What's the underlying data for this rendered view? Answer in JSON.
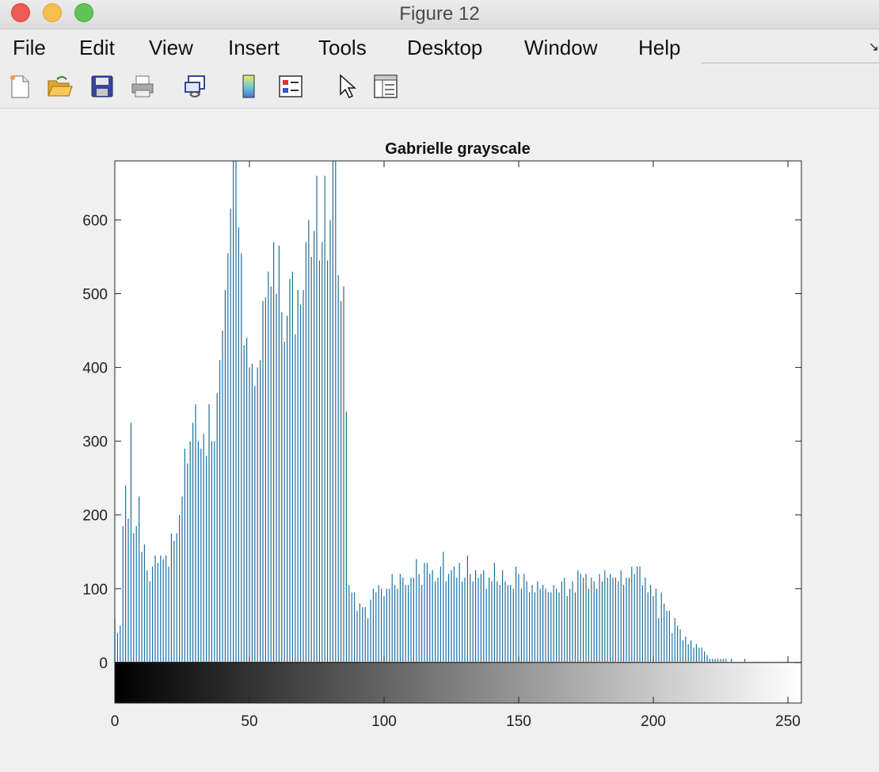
{
  "window": {
    "title": "Figure 12"
  },
  "menu": {
    "file": "File",
    "edit": "Edit",
    "view": "View",
    "insert": "Insert",
    "tools": "Tools",
    "desktop": "Desktop",
    "window": "Window",
    "help": "Help"
  },
  "toolbar": {
    "icons": [
      "new-figure-icon",
      "open-file-icon",
      "save-icon",
      "print-icon",
      "link-plot-icon",
      "insert-colorbar-icon",
      "insert-legend-icon",
      "edit-plot-pointer-icon",
      "property-inspector-icon"
    ]
  },
  "colors": {
    "bar": "#1f6f9e",
    "axes": "#262626",
    "background": "#efefef"
  },
  "chart_data": {
    "type": "bar",
    "title": "Gabrielle grayscale",
    "xlabel": "",
    "ylabel": "",
    "xlim": [
      0,
      255
    ],
    "ylim": [
      -55,
      680
    ],
    "xticks": [
      0,
      50,
      100,
      150,
      200,
      250
    ],
    "yticks": [
      0,
      100,
      200,
      300,
      400,
      500,
      600
    ],
    "colorbar": "grayscale 0-255 below axis",
    "x_start": 0,
    "values": [
      60,
      40,
      50,
      185,
      240,
      195,
      325,
      175,
      185,
      225,
      150,
      160,
      125,
      110,
      130,
      145,
      135,
      145,
      140,
      145,
      130,
      175,
      165,
      175,
      200,
      225,
      290,
      270,
      300,
      325,
      350,
      300,
      290,
      310,
      280,
      350,
      300,
      300,
      365,
      410,
      450,
      505,
      555,
      615,
      680,
      680,
      590,
      555,
      430,
      440,
      400,
      405,
      375,
      400,
      410,
      490,
      495,
      530,
      510,
      570,
      500,
      565,
      475,
      435,
      470,
      520,
      530,
      445,
      505,
      485,
      505,
      570,
      600,
      550,
      585,
      660,
      545,
      570,
      660,
      545,
      600,
      720,
      720,
      525,
      490,
      510,
      340,
      105,
      95,
      95,
      70,
      80,
      75,
      75,
      60,
      85,
      100,
      95,
      105,
      100,
      90,
      100,
      100,
      120,
      105,
      100,
      120,
      115,
      105,
      105,
      115,
      115,
      140,
      120,
      105,
      135,
      135,
      120,
      125,
      110,
      115,
      130,
      150,
      110,
      120,
      125,
      130,
      115,
      135,
      110,
      115,
      145,
      120,
      110,
      125,
      115,
      120,
      125,
      100,
      115,
      110,
      135,
      110,
      105,
      125,
      110,
      105,
      105,
      100,
      130,
      120,
      100,
      120,
      110,
      95,
      105,
      95,
      110,
      100,
      105,
      100,
      95,
      95,
      105,
      100,
      95,
      110,
      115,
      90,
      100,
      110,
      95,
      125,
      120,
      115,
      120,
      100,
      115,
      110,
      100,
      120,
      110,
      125,
      115,
      120,
      115,
      115,
      110,
      125,
      105,
      115,
      115,
      130,
      120,
      130,
      130,
      105,
      115,
      95,
      105,
      90,
      100,
      60,
      95,
      80,
      70,
      70,
      40,
      60,
      50,
      45,
      30,
      35,
      25,
      30,
      20,
      25,
      20,
      20,
      15,
      10,
      5,
      5,
      5,
      5,
      5,
      5,
      5,
      0,
      5,
      0,
      0,
      0,
      0,
      5,
      0,
      0,
      0,
      0,
      0,
      0,
      0,
      0
    ]
  }
}
